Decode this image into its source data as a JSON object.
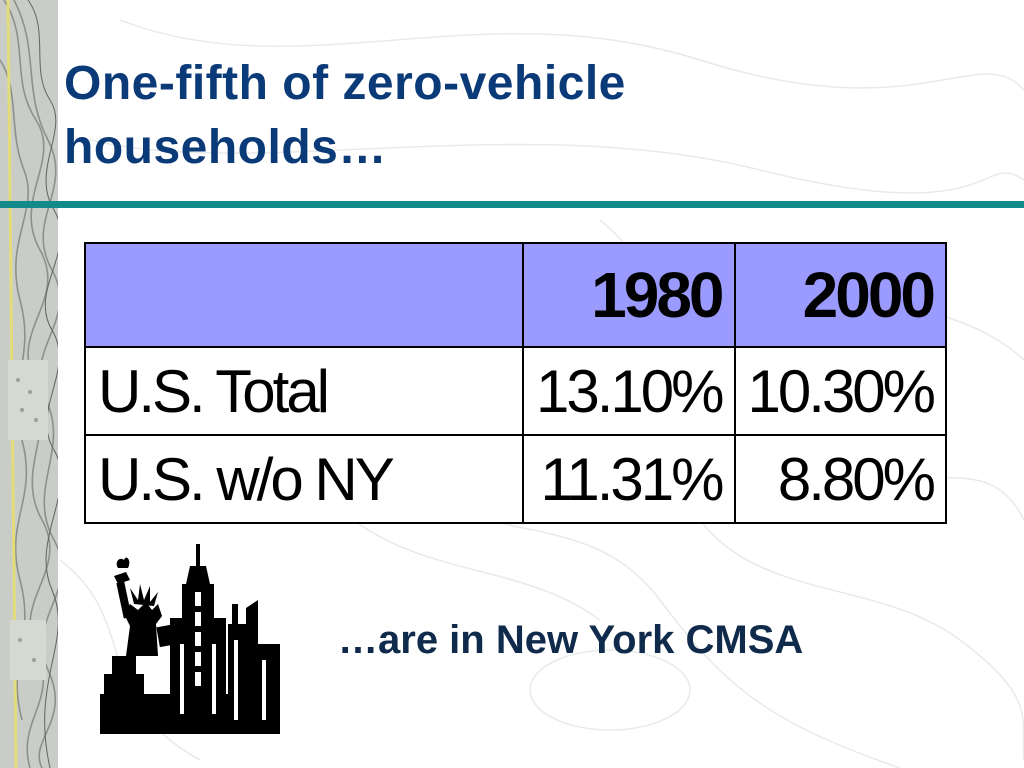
{
  "slide": {
    "title_line1": "One-fifth of zero-vehicle",
    "title_line2": "households…",
    "footer": "…are in New York CMSA"
  },
  "table": {
    "columns": [
      "",
      "1980",
      "2000"
    ],
    "rows": [
      {
        "label": "U.S. Total",
        "values": [
          "13.10%",
          "10.30%"
        ]
      },
      {
        "label": "U.S. w/o NY",
        "values": [
          "11.31%",
          "8.80%"
        ]
      }
    ]
  },
  "colors": {
    "title": "#0b3a78",
    "rule": "#138a8a",
    "header_fill": "#9a9aff",
    "footer": "#0f2a4a"
  },
  "icons": {
    "clipart": "statue-of-liberty-skyline-icon",
    "sidebar": "topographic-map-strip"
  }
}
